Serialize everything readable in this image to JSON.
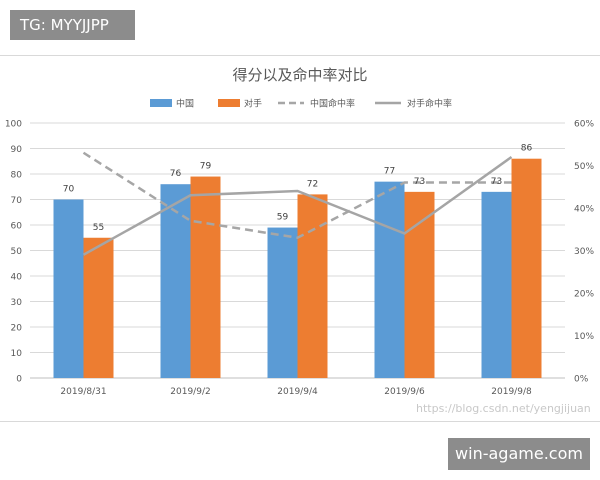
{
  "badge_top": "TG: MYYJJPP",
  "badge_bottom": "win-agame.com",
  "watermark": "https://blog.csdn.net/yengjijuan",
  "colors": {
    "china": "#5b9bd5",
    "opponent": "#ed7d31",
    "china_rate": "#a6a6a6",
    "opponent_rate": "#a5a5a5"
  },
  "chart_data": {
    "type": "bar",
    "title": "得分以及命中率对比",
    "categories": [
      "2019/8/31",
      "2019/9/2",
      "2019/9/4",
      "2019/9/6",
      "2019/9/8"
    ],
    "series": [
      {
        "name": "中国",
        "values": [
          70,
          76,
          59,
          77,
          73
        ],
        "axis": "left",
        "kind": "bar"
      },
      {
        "name": "对手",
        "values": [
          55,
          79,
          72,
          73,
          86
        ],
        "axis": "left",
        "kind": "bar"
      },
      {
        "name": "中国命中率",
        "values": [
          0.53,
          0.37,
          0.33,
          0.46,
          0.46
        ],
        "axis": "right",
        "kind": "line",
        "dashed": true
      },
      {
        "name": "对手命中率",
        "values": [
          0.29,
          0.43,
          0.44,
          0.34,
          0.52
        ],
        "axis": "right",
        "kind": "line",
        "dashed": false
      }
    ],
    "ylim": [
      0,
      100
    ],
    "yticks": [
      "0",
      "10",
      "20",
      "30",
      "40",
      "50",
      "60",
      "70",
      "80",
      "90",
      "100"
    ],
    "y2lim": [
      0,
      0.6
    ],
    "y2ticks": [
      "0%",
      "10%",
      "20%",
      "30%",
      "40%",
      "50%",
      "60%"
    ],
    "grid": true,
    "legend": "top"
  }
}
